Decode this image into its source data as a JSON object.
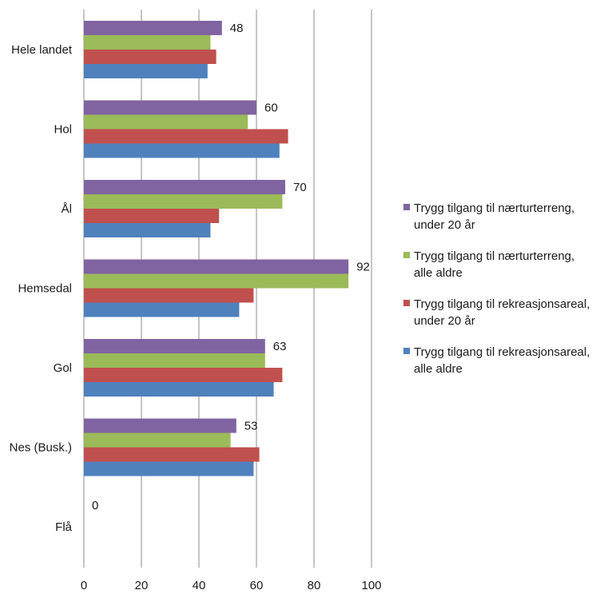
{
  "chart_data": {
    "type": "bar",
    "orientation": "horizontal",
    "title": "",
    "xlabel": "",
    "ylabel": "",
    "xlim": [
      0,
      100
    ],
    "x_ticks": [
      "0",
      "20",
      "40",
      "60",
      "80",
      "100"
    ],
    "grid": true,
    "legend_position": "right",
    "categories": [
      "Hele landet",
      "Hol",
      "Ål",
      "Hemsedal",
      "Gol",
      "Nes (Busk.)",
      "Flå"
    ],
    "series": [
      {
        "name": "Trygg tilgang til nærturterreng, under 20 år",
        "legend_lines": [
          "Trygg tilgang til nærturterreng,",
          "under 20 år"
        ],
        "color": "#8064a2",
        "values": [
          48,
          60,
          70,
          92,
          63,
          53,
          0
        ],
        "data_labels": [
          "48",
          "60",
          "70",
          "92",
          "63",
          "53",
          "0"
        ]
      },
      {
        "name": "Trygg tilgang til nærturterreng, alle aldre",
        "legend_lines": [
          "Trygg tilgang til nærturterreng,",
          "alle aldre"
        ],
        "color": "#9bbb59",
        "values": [
          44,
          57,
          69,
          92,
          63,
          51,
          0
        ]
      },
      {
        "name": "Trygg tilgang til rekreasjonsareal, under 20 år",
        "legend_lines": [
          "Trygg tilgang til rekreasjonsareal,",
          "under 20 år"
        ],
        "color": "#c0504d",
        "values": [
          46,
          71,
          47,
          59,
          69,
          61,
          0
        ]
      },
      {
        "name": "Trygg tilgang til rekreasjonsareal, alle aldre",
        "legend_lines": [
          "Trygg tilgang til rekreasjonsareal,",
          "alle aldre"
        ],
        "color": "#4f81bd",
        "values": [
          43,
          68,
          44,
          54,
          66,
          59,
          0
        ]
      }
    ]
  }
}
